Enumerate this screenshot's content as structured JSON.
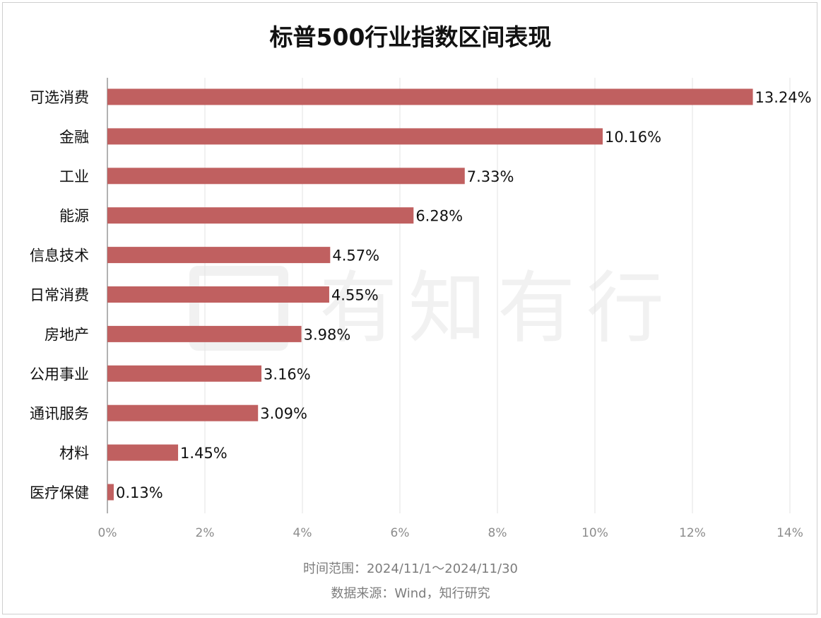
{
  "title": "标普500行业指数区间表现",
  "watermark": {
    "icon": "brand-logo-icon",
    "text": "有知有行"
  },
  "footer": {
    "time_range": "时间范围：2024/11/1～2024/11/30",
    "source": "数据来源：Wind，知行研究"
  },
  "colors": {
    "bar": "#c06060",
    "grid": "#e3e3e3",
    "axis": "#999999",
    "tick_text": "#8c8c8c",
    "label_text": "#111111"
  },
  "chart_data": {
    "type": "bar",
    "orientation": "horizontal",
    "title": "标普500行业指数区间表现",
    "xlabel": "",
    "ylabel": "",
    "xlim": [
      0,
      14
    ],
    "xticks": [
      0,
      2,
      4,
      6,
      8,
      10,
      12,
      14
    ],
    "xtick_labels": [
      "0%",
      "2%",
      "4%",
      "6%",
      "8%",
      "10%",
      "12%",
      "14%"
    ],
    "grid": "vertical",
    "categories": [
      "可选消费",
      "金融",
      "工业",
      "能源",
      "信息技术",
      "日常消费",
      "房地产",
      "公用事业",
      "通讯服务",
      "材料",
      "医疗保健"
    ],
    "values": [
      13.24,
      10.16,
      7.33,
      6.28,
      4.57,
      4.55,
      3.98,
      3.16,
      3.09,
      1.45,
      0.13
    ],
    "value_labels": [
      "13.24%",
      "10.16%",
      "7.33%",
      "6.28%",
      "4.57%",
      "4.55%",
      "3.98%",
      "3.16%",
      "3.09%",
      "1.45%",
      "0.13%"
    ]
  }
}
